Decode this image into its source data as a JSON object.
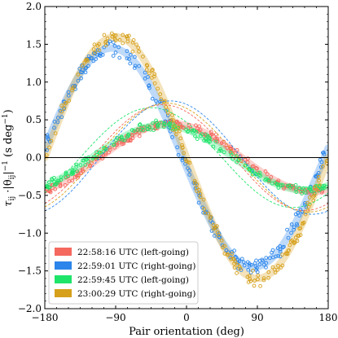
{
  "chart_data": {
    "type": "scatter",
    "xlabel": "Pair orientation (deg)",
    "ylabel": "τ_ij · |θ_ij|^-1 (s deg^-1)",
    "xlim": [
      -180,
      180
    ],
    "ylim": [
      -2.0,
      2.0
    ],
    "x_ticks": [
      -180,
      -90,
      0,
      90,
      180
    ],
    "x_tick_labels": [
      "−180",
      "−90",
      "0",
      "90",
      "180"
    ],
    "y_ticks": [
      -2.0,
      -1.5,
      -1.0,
      -0.5,
      0.0,
      0.5,
      1.0,
      1.5,
      2.0
    ],
    "y_tick_labels": [
      "−2.0",
      "−1.5",
      "−1.0",
      "−0.5",
      "0.0",
      "0.5",
      "1.0",
      "1.5",
      "2.0"
    ],
    "reference_line_y": 0,
    "grid": false,
    "legend_position": "lower-left",
    "series": [
      {
        "name": "22:58:16 UTC (left-going)",
        "color": "#f4685e",
        "fit": {
          "amplitude": 0.45,
          "phase_deg": -20
        },
        "dashed_fit": {
          "amplitude": 0.7,
          "phase_deg": -30
        }
      },
      {
        "name": "22:59:01 UTC (right-going)",
        "color": "#2b85ea",
        "fit": {
          "amplitude": 1.45,
          "phase_deg": -95
        },
        "dashed_fit": {
          "amplitude": 0.75,
          "phase_deg": -20
        }
      },
      {
        "name": "22:59:45 UTC (left-going)",
        "color": "#1fe46a",
        "fit": {
          "amplitude": 0.43,
          "phase_deg": -30
        },
        "dashed_fit": {
          "amplitude": 0.66,
          "phase_deg": -45
        }
      },
      {
        "name": "23:00:29 UTC (right-going)",
        "color": "#d6a01b",
        "fit": {
          "amplitude": 1.6,
          "phase_deg": -90
        },
        "dashed_fit": {
          "amplitude": 0.72,
          "phase_deg": -25
        }
      }
    ]
  }
}
